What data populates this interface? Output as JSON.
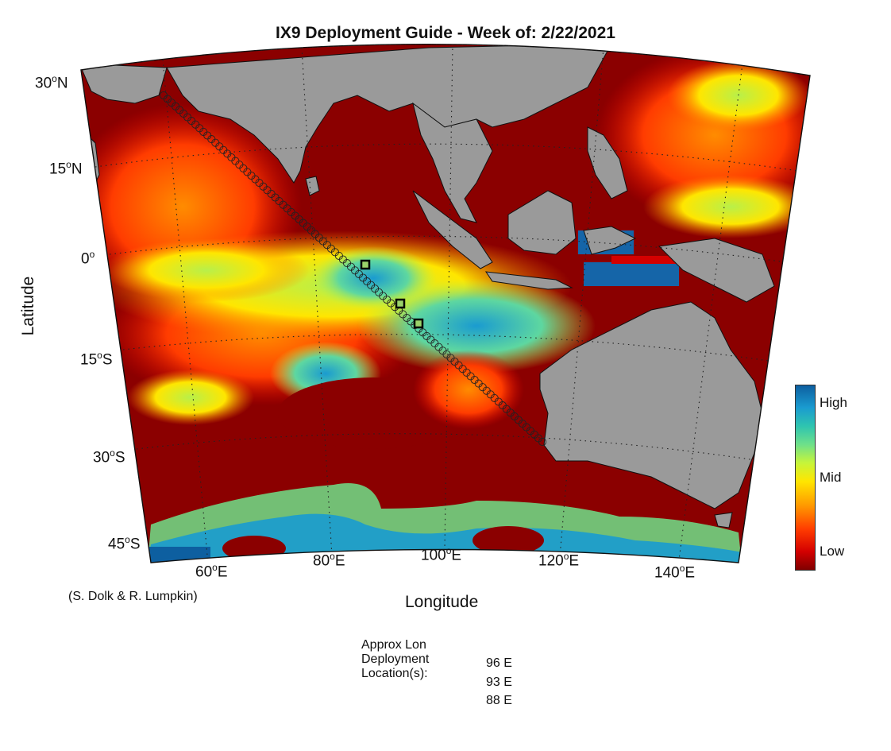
{
  "title": "IX9 Deployment Guide - Week of: 2/22/2021",
  "axes": {
    "xlabel": "Longitude",
    "ylabel": "Latitude"
  },
  "lat_ticks": [
    {
      "deg": "30",
      "suffix": "N"
    },
    {
      "deg": "15",
      "suffix": "N"
    },
    {
      "deg": "0",
      "suffix": ""
    },
    {
      "deg": "15",
      "suffix": "S"
    },
    {
      "deg": "30",
      "suffix": "S"
    },
    {
      "deg": "45",
      "suffix": "S"
    }
  ],
  "lon_ticks": [
    {
      "deg": "60",
      "suffix": "E"
    },
    {
      "deg": "80",
      "suffix": "E"
    },
    {
      "deg": "100",
      "suffix": "E"
    },
    {
      "deg": "120",
      "suffix": "E"
    },
    {
      "deg": "140",
      "suffix": "E"
    }
  ],
  "colorbar": {
    "labels": [
      "High",
      "Mid",
      "Low"
    ]
  },
  "credit": "(S. Dolk & R. Lumpkin)",
  "deployment": {
    "heading": [
      "Approx Lon",
      "Deployment",
      "Location(s):"
    ],
    "locations": [
      "96 E",
      "93 E",
      "88 E"
    ]
  },
  "map": {
    "colors": {
      "land": "#9a9a9a",
      "low": "#8b0000",
      "mid": "#ffe600",
      "high": "#1565a8",
      "track": "#222222"
    }
  }
}
